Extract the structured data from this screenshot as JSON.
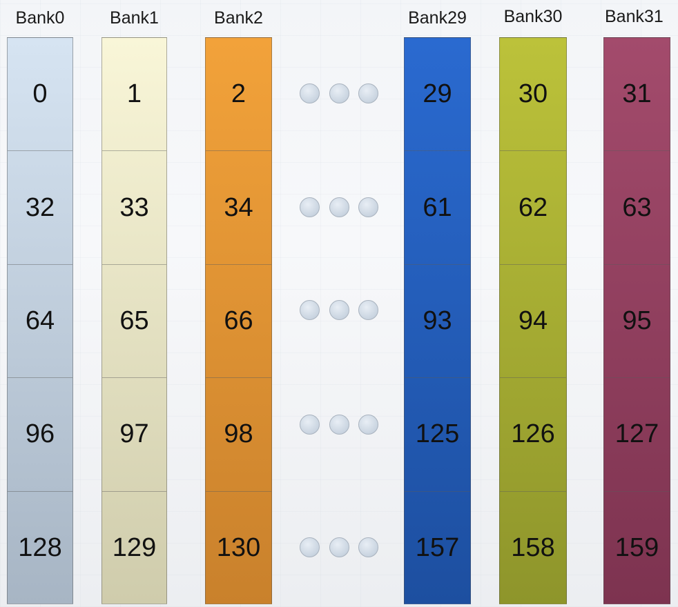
{
  "banks": [
    {
      "label": "Bank0",
      "cells": [
        "0",
        "32",
        "64",
        "96",
        "128"
      ],
      "color_top": "#d6e4f2",
      "color_bottom": "#a7b5c4"
    },
    {
      "label": "Bank1",
      "cells": [
        "1",
        "33",
        "65",
        "97",
        "129"
      ],
      "color_top": "#f9f6d8",
      "color_bottom": "#cfccac"
    },
    {
      "label": "Bank2",
      "cells": [
        "2",
        "34",
        "66",
        "98",
        "130"
      ],
      "color_top": "#f2a23a",
      "color_bottom": "#c9812c"
    },
    {
      "label": "Bank29",
      "cells": [
        "29",
        "61",
        "93",
        "125",
        "157"
      ],
      "color_top": "#2a6ad0",
      "color_bottom": "#1d4fa0"
    },
    {
      "label": "Bank30",
      "cells": [
        "30",
        "62",
        "94",
        "126",
        "158"
      ],
      "color_top": "#bcc23a",
      "color_bottom": "#8e952b"
    },
    {
      "label": "Bank31",
      "cells": [
        "31",
        "63",
        "95",
        "127",
        "159"
      ],
      "color_top": "#a34b6c",
      "color_bottom": "#7d3350"
    }
  ],
  "ellipsis_rows": 5,
  "ellipsis_dots_per_row": 3
}
